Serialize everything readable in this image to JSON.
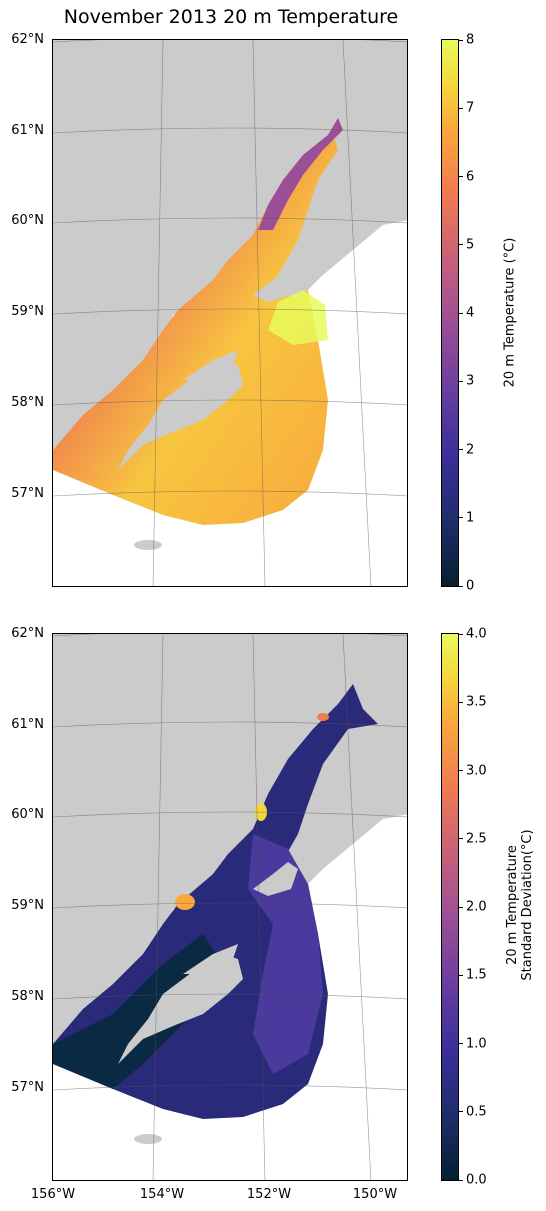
{
  "title": "November 2013 20 m Temperature",
  "map_panels": [
    {
      "name": "20 m Temperature",
      "lat_labels": [
        "62°N",
        "61°N",
        "60°N",
        "59°N",
        "58°N",
        "57°N"
      ],
      "colorbar": {
        "label": "20 m Temperature (°C)",
        "ticks": [
          "0",
          "1",
          "2",
          "3",
          "4",
          "5",
          "6",
          "7",
          "8"
        ],
        "range": [
          0,
          8
        ],
        "colormap": "thermal"
      }
    },
    {
      "name": "20 m Temperature Standard Deviation",
      "lat_labels": [
        "62°N",
        "61°N",
        "60°N",
        "59°N",
        "58°N",
        "57°N"
      ],
      "colorbar": {
        "label_line1": "20 m Temperature",
        "label_line2": "Standard Deviation(°C)",
        "ticks": [
          "0.0",
          "0.5",
          "1.0",
          "1.5",
          "2.0",
          "2.5",
          "3.0",
          "3.5",
          "4.0"
        ],
        "range": [
          0,
          4
        ],
        "colormap": "thermal"
      }
    }
  ],
  "lon_labels": [
    "156°W",
    "154°W",
    "152°W",
    "150°W"
  ],
  "colors": {
    "land": "#cbcbcb",
    "cmap": [
      "#04202f",
      "#1f2d6b",
      "#3b2f9a",
      "#6a3e9f",
      "#9a4f96",
      "#c96079",
      "#ef7b50",
      "#f9a93c",
      "#f5d63f",
      "#e8fa5b"
    ]
  }
}
